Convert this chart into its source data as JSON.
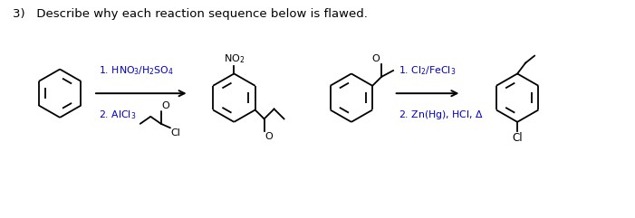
{
  "title_text": "3)   Describe why each reaction sequence below is flawed.",
  "title_fontsize": 9.5,
  "title_color": "#000000",
  "reagent1_line1": "1. HNO$_3$/H$_2$SO$_4$",
  "reagent1_line2": "2. AlCl$_3$",
  "reagent2_line1": "1. Cl$_2$/FeCl$_3$",
  "reagent2_line2": "2. Zn(Hg), HCl, $\\Delta$",
  "text_color": "#0000cc",
  "struct_color": "#000000",
  "background": "#ffffff",
  "ring_r": 0.27,
  "lw": 1.3
}
